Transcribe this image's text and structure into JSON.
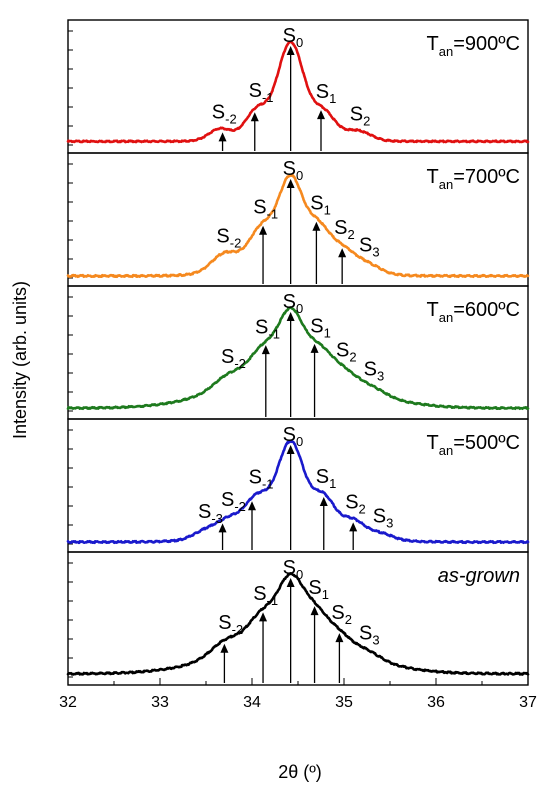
{
  "chart_data": {
    "type": "line",
    "xlabel": "2θ (º)",
    "ylabel": "Intensity (arb. units)",
    "xlim": [
      32,
      37
    ],
    "x_ticks": [
      "32",
      "33",
      "34",
      "35",
      "36",
      "37"
    ],
    "grid": false,
    "legend": "none",
    "panels": [
      {
        "name": "T_an=900ºC",
        "condition_label": {
          "main": "T",
          "sub": "an",
          "rest": "=900ºC"
        },
        "color": "#e01010",
        "baseline": 0.05,
        "peaks": [
          {
            "label": "S",
            "index": "-2",
            "x": 33.65,
            "height": 0.1,
            "width": 0.12
          },
          {
            "label": "S",
            "index": "-1",
            "x": 34.05,
            "height": 0.22,
            "width": 0.12
          },
          {
            "label": "S",
            "index": "0",
            "x": 34.42,
            "height": 0.78,
            "width": 0.14
          },
          {
            "label": "S",
            "index": "1",
            "x": 34.78,
            "height": 0.2,
            "width": 0.12
          },
          {
            "label": "S",
            "index": "2",
            "x": 35.15,
            "height": 0.08,
            "width": 0.14
          }
        ],
        "background": {
          "height": 0.1,
          "width": 0.55
        },
        "arrows_x": [
          33.68,
          34.03,
          34.42,
          34.75
        ]
      },
      {
        "name": "T_an=700ºC",
        "condition_label": {
          "main": "T",
          "sub": "an",
          "rest": "=700ºC"
        },
        "color": "#f5891f",
        "baseline": 0.03,
        "peaks": [
          {
            "label": "S",
            "index": "-2",
            "x": 33.7,
            "height": 0.12,
            "width": 0.14
          },
          {
            "label": "S",
            "index": "-1",
            "x": 34.1,
            "height": 0.22,
            "width": 0.13
          },
          {
            "label": "S",
            "index": "0",
            "x": 34.42,
            "height": 0.55,
            "width": 0.13
          },
          {
            "label": "S",
            "index": "1",
            "x": 34.72,
            "height": 0.22,
            "width": 0.12
          },
          {
            "label": "S",
            "index": "2",
            "x": 34.98,
            "height": 0.12,
            "width": 0.13
          },
          {
            "label": "S",
            "index": "3",
            "x": 35.25,
            "height": 0.06,
            "width": 0.14
          }
        ],
        "background": {
          "height": 0.18,
          "width": 0.65
        },
        "arrows_x": [
          34.12,
          34.42,
          34.7,
          34.98
        ]
      },
      {
        "name": "T_an=600ºC",
        "condition_label": {
          "main": "T",
          "sub": "an",
          "rest": "=600ºC"
        },
        "color": "#1e7a1e",
        "baseline": 0.04,
        "peaks": [
          {
            "label": "S",
            "index": "-2",
            "x": 33.75,
            "height": 0.1,
            "width": 0.16
          },
          {
            "label": "S",
            "index": "-1",
            "x": 34.12,
            "height": 0.22,
            "width": 0.14
          },
          {
            "label": "S",
            "index": "0",
            "x": 34.42,
            "height": 0.48,
            "width": 0.13
          },
          {
            "label": "S",
            "index": "1",
            "x": 34.72,
            "height": 0.22,
            "width": 0.14
          },
          {
            "label": "S",
            "index": "2",
            "x": 35.0,
            "height": 0.1,
            "width": 0.14
          },
          {
            "label": "S",
            "index": "3",
            "x": 35.3,
            "height": 0.05,
            "width": 0.15
          }
        ],
        "background": {
          "height": 0.3,
          "width": 0.95
        },
        "arrows_x": [
          34.15,
          34.42,
          34.68
        ]
      },
      {
        "name": "T_an=500ºC",
        "condition_label": {
          "main": "T",
          "sub": "an",
          "rest": "=500ºC"
        },
        "color": "#1a1acc",
        "baseline": 0.03,
        "peaks": [
          {
            "label": "S",
            "index": "-3",
            "x": 33.5,
            "height": 0.06,
            "width": 0.13
          },
          {
            "label": "S",
            "index": "-2",
            "x": 33.75,
            "height": 0.1,
            "width": 0.12
          },
          {
            "label": "S",
            "index": "-1",
            "x": 34.05,
            "height": 0.22,
            "width": 0.13
          },
          {
            "label": "S",
            "index": "0",
            "x": 34.42,
            "height": 0.6,
            "width": 0.14
          },
          {
            "label": "S",
            "index": "1",
            "x": 34.78,
            "height": 0.22,
            "width": 0.12
          },
          {
            "label": "S",
            "index": "2",
            "x": 35.1,
            "height": 0.1,
            "width": 0.12
          },
          {
            "label": "S",
            "index": "3",
            "x": 35.4,
            "height": 0.04,
            "width": 0.13
          }
        ],
        "background": {
          "height": 0.16,
          "width": 0.75
        },
        "arrows_x": [
          33.68,
          34.0,
          34.42,
          34.78,
          35.1
        ]
      },
      {
        "name": "as-grown",
        "condition_label": {
          "main": "as-grown",
          "sub": "",
          "rest": ""
        },
        "color": "#000000",
        "baseline": 0.04,
        "peaks": [
          {
            "label": "S",
            "index": "-2",
            "x": 33.72,
            "height": 0.1,
            "width": 0.16
          },
          {
            "label": "S",
            "index": "-1",
            "x": 34.1,
            "height": 0.2,
            "width": 0.14
          },
          {
            "label": "S",
            "index": "0",
            "x": 34.42,
            "height": 0.45,
            "width": 0.14
          },
          {
            "label": "S",
            "index": "1",
            "x": 34.7,
            "height": 0.2,
            "width": 0.13
          },
          {
            "label": "S",
            "index": "2",
            "x": 34.95,
            "height": 0.1,
            "width": 0.13
          },
          {
            "label": "S",
            "index": "3",
            "x": 35.25,
            "height": 0.05,
            "width": 0.14
          }
        ],
        "background": {
          "height": 0.28,
          "width": 0.95
        },
        "arrows_x": [
          33.7,
          34.12,
          34.42,
          34.68,
          34.95
        ]
      }
    ]
  }
}
